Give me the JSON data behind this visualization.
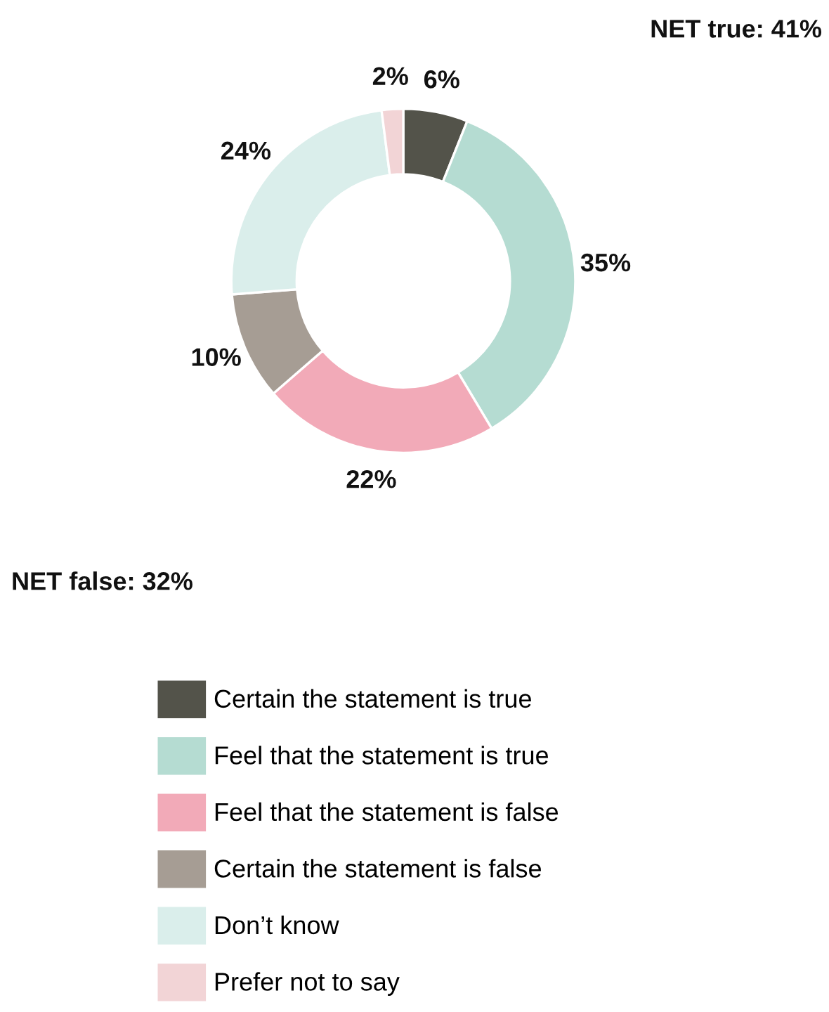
{
  "chart_data": {
    "type": "donut",
    "categories": [
      "Certain the statement is true",
      "Feel that the statement is true",
      "Feel that the statement is false",
      "Certain the statement is false",
      "Don’t know",
      "Prefer not to say"
    ],
    "values": [
      6,
      35,
      22,
      10,
      24,
      2
    ],
    "colors": [
      "#53534a",
      "#b5dcd2",
      "#f2aab8",
      "#a69d94",
      "#daeeeb",
      "#f2d4d6"
    ],
    "value_labels": [
      "6%",
      "35%",
      "22%",
      "10%",
      "24%",
      "2%"
    ],
    "annotations": [
      "NET true: 41%",
      "NET false: 32%"
    ],
    "legend": "bottom"
  }
}
